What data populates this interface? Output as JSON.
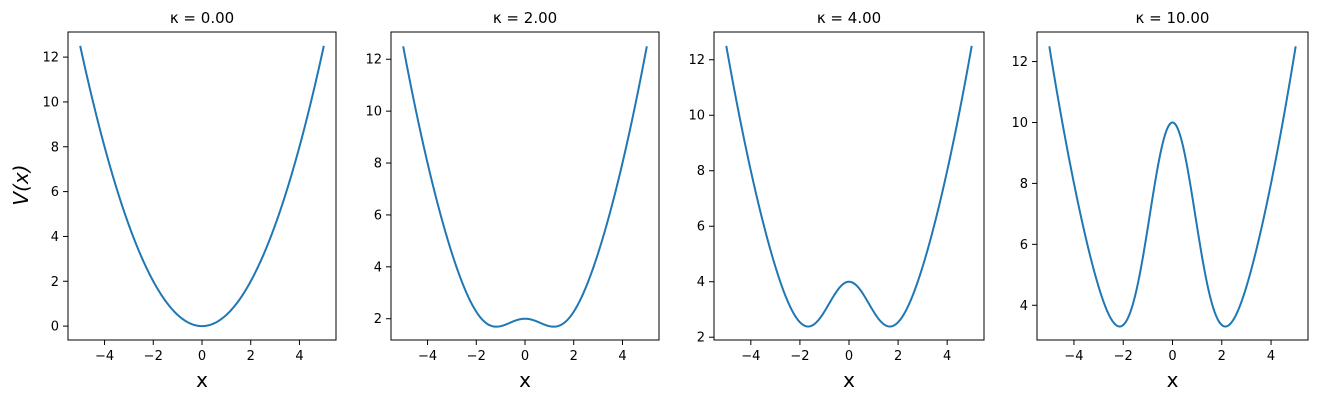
{
  "figure": {
    "ylabel": "V(x)"
  },
  "chart_data": [
    {
      "type": "line",
      "title": "κ =  0.00",
      "kappa": 0.0,
      "xlabel": "x",
      "xlim": [
        -5.5,
        5.5
      ],
      "ylim": [
        -0.62,
        13.12
      ],
      "xticks": [
        -4,
        -2,
        0,
        2,
        4
      ],
      "yticks": [
        0,
        2,
        4,
        6,
        8,
        10,
        12
      ],
      "xtick_labels": [
        "−4",
        "−2",
        "0",
        "2",
        "4"
      ],
      "ytick_labels": [
        "0",
        "2",
        "4",
        "6",
        "8",
        "10",
        "12"
      ],
      "series": [
        {
          "color": "#1f77b4",
          "x_range": [
            -5,
            5
          ]
        }
      ]
    },
    {
      "type": "line",
      "title": "κ =  2.00",
      "kappa": 2.0,
      "xlabel": "x",
      "xlim": [
        -5.5,
        5.5
      ],
      "ylim": [
        1.18,
        13.05
      ],
      "xticks": [
        -4,
        -2,
        0,
        2,
        4
      ],
      "yticks": [
        2,
        4,
        6,
        8,
        10,
        12
      ],
      "xtick_labels": [
        "−4",
        "−2",
        "0",
        "2",
        "4"
      ],
      "ytick_labels": [
        "2",
        "4",
        "6",
        "8",
        "10",
        "12"
      ],
      "series": [
        {
          "color": "#1f77b4",
          "x_range": [
            -5,
            5
          ]
        }
      ]
    },
    {
      "type": "line",
      "title": "κ =  4.00",
      "kappa": 4.0,
      "xlabel": "x",
      "xlim": [
        -5.5,
        5.5
      ],
      "ylim": [
        1.9,
        13.0
      ],
      "xticks": [
        -4,
        -2,
        0,
        2,
        4
      ],
      "yticks": [
        2,
        4,
        6,
        8,
        10,
        12
      ],
      "xtick_labels": [
        "−4",
        "−2",
        "0",
        "2",
        "4"
      ],
      "ytick_labels": [
        "2",
        "4",
        "6",
        "8",
        "10",
        "12"
      ],
      "series": [
        {
          "color": "#1f77b4",
          "x_range": [
            -5,
            5
          ]
        }
      ]
    },
    {
      "type": "line",
      "title": "κ =  10.00",
      "kappa": 10.0,
      "xlabel": "x",
      "xlim": [
        -5.5,
        5.5
      ],
      "ylim": [
        2.86,
        12.97
      ],
      "xticks": [
        -4,
        -2,
        0,
        2,
        4
      ],
      "yticks": [
        4,
        6,
        8,
        10,
        12
      ],
      "xtick_labels": [
        "−4",
        "−2",
        "0",
        "2",
        "4"
      ],
      "ytick_labels": [
        "4",
        "6",
        "8",
        "10",
        "12"
      ],
      "series": [
        {
          "color": "#1f77b4",
          "x_range": [
            -5,
            5
          ]
        }
      ]
    }
  ]
}
